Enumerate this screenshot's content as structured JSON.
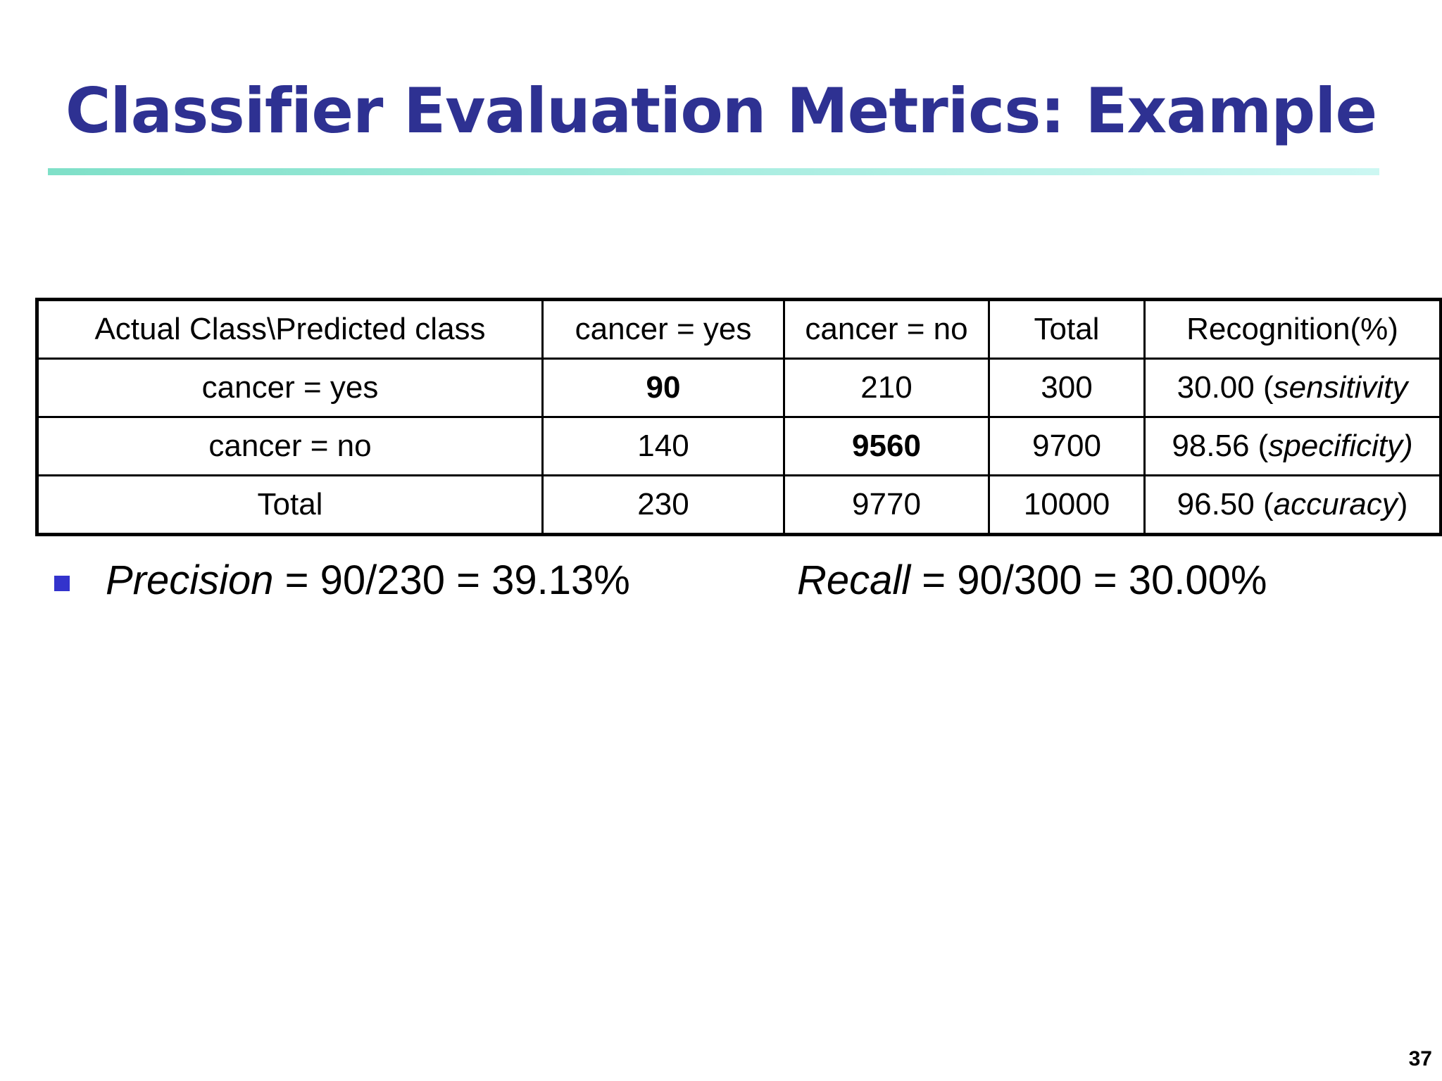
{
  "title": "Classifier Evaluation Metrics: Example",
  "table": {
    "header": [
      "Actual Class\\Predicted class",
      "cancer = yes",
      "cancer = no",
      "Total",
      "Recognition(%)"
    ],
    "rows": [
      {
        "label": "cancer = yes",
        "pred_yes": "90",
        "pred_no": "210",
        "total": "300",
        "recognition_value": "30.00",
        "recognition_open": " (",
        "recognition_note": "sensitivity",
        "recognition_close": ""
      },
      {
        "label": "cancer = no",
        "pred_yes": "140",
        "pred_no": "9560",
        "total": "9700",
        "recognition_value": "98.56",
        "recognition_open": " (",
        "recognition_note": "specificity)",
        "recognition_close": ""
      },
      {
        "label": "Total",
        "pred_yes": "230",
        "pred_no": "9770",
        "total": "10000",
        "recognition_value": "96.50",
        "recognition_open": " (",
        "recognition_note": "accuracy",
        "recognition_close": ")"
      }
    ]
  },
  "metrics": {
    "precision_term": "Precision",
    "precision_formula": " = 90/230 = 39.13%",
    "recall_term": "Recall",
    "recall_formula": " = 90/300 = 30.00%"
  },
  "colors": {
    "title": "#2e3192",
    "bullet": "#3333cc",
    "rule": "#7fe0c8"
  },
  "page_number": "37"
}
